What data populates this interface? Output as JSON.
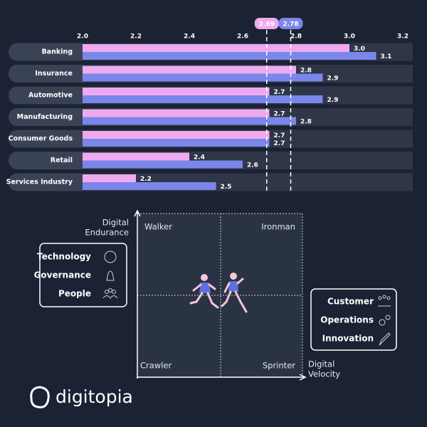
{
  "chart_data": {
    "type": "bar",
    "orientation": "horizontal",
    "categories": [
      "Banking",
      "Insurance",
      "Automotive",
      "Manufacturing",
      "Consumer Goods",
      "Retail",
      "Services Industry"
    ],
    "series": [
      {
        "color": "#eeaaee",
        "values": [
          3.0,
          2.8,
          2.7,
          2.7,
          2.7,
          2.4,
          2.2
        ],
        "value_labels": [
          "3.0",
          "2.8",
          "2.7",
          "2.7",
          "2.7",
          "2.4",
          "2.2"
        ]
      },
      {
        "color": "#7b86ea",
        "values": [
          3.1,
          2.9,
          2.9,
          2.8,
          2.7,
          2.6,
          2.5
        ],
        "value_labels": [
          "3.1",
          "2.9",
          "2.9",
          "2.8",
          "2.7",
          "2.6",
          "2.5"
        ]
      }
    ],
    "xlim": [
      2.0,
      3.2
    ],
    "xticks": [
      {
        "value": 2,
        "label": "2.0"
      },
      2.2,
      2.4,
      2.6,
      2.8,
      {
        "value": 3,
        "label": "3.0"
      },
      3.2
    ],
    "reference_lines": [
      {
        "value": 2.69,
        "color": "#eeaaee"
      },
      {
        "value": 2.78,
        "color": "#7b86ea"
      }
    ]
  },
  "diagram": {
    "y_label": [
      "Digital",
      "Endurance"
    ],
    "x_label": [
      "Digital",
      "Velocity"
    ],
    "quadrants": [
      "Walker",
      "Ironman",
      "Crawler",
      "Sprinter"
    ],
    "left_box": [
      "Technology",
      "Governance",
      "People"
    ],
    "right_box": [
      "Customer",
      "Operations",
      "Innovation"
    ]
  },
  "logo": "digitopia"
}
